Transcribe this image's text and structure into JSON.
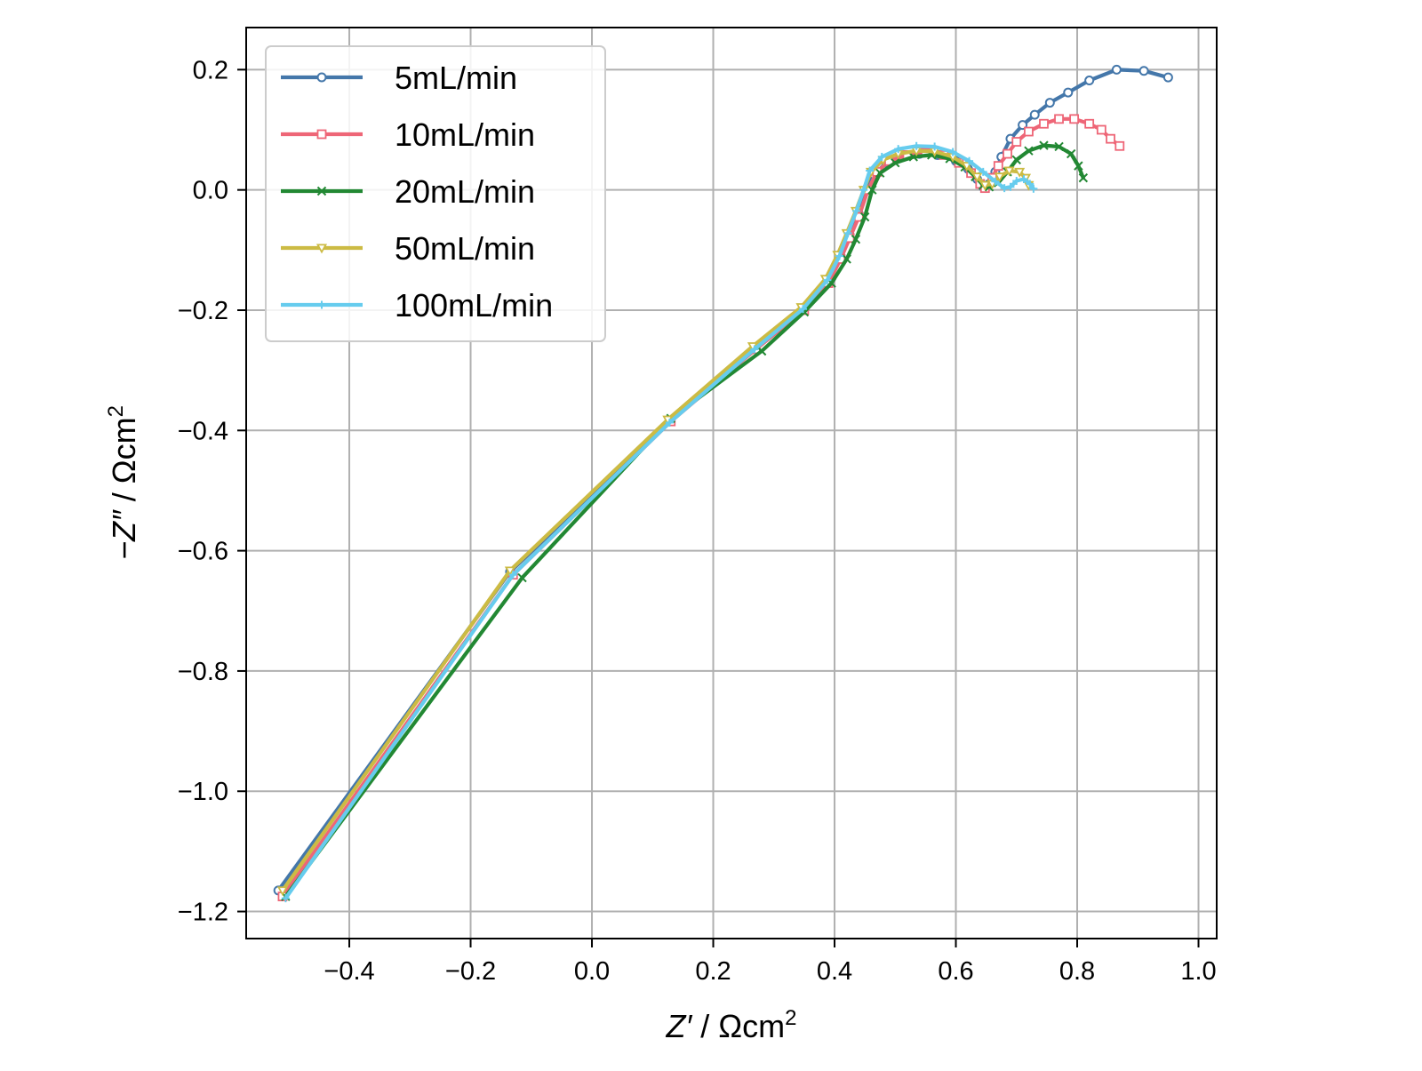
{
  "chart_data": {
    "type": "line",
    "xlabel_var": "Z′",
    "xlabel_unit": " / Ωcm",
    "ylabel_var": "−Z″",
    "ylabel_unit": " / Ωcm",
    "unit_exponent": "2",
    "xlim": [
      -0.57,
      1.03
    ],
    "ylim": [
      -1.245,
      0.27
    ],
    "xticks": [
      -0.4,
      -0.2,
      0.0,
      0.2,
      0.4,
      0.6,
      0.8,
      1.0
    ],
    "xtick_labels": [
      "−0.4",
      "−0.2",
      "0.0",
      "0.2",
      "0.4",
      "0.6",
      "0.8",
      "1.0"
    ],
    "yticks": [
      0.2,
      0.0,
      -0.2,
      -0.4,
      -0.6,
      -0.8,
      -1.0,
      -1.2
    ],
    "ytick_labels": [
      "0.2",
      "0.0",
      "−0.2",
      "−0.4",
      "−0.6",
      "−0.8",
      "−1.0",
      "−1.2"
    ],
    "grid": true,
    "legend_position": "top-left",
    "series": [
      {
        "name": "5mL/min",
        "color": "#4477aa",
        "marker": "circle",
        "points": [
          [
            -0.517,
            -1.165
          ],
          [
            -0.135,
            -0.635
          ],
          [
            0.128,
            -0.385
          ],
          [
            0.27,
            -0.263
          ],
          [
            0.35,
            -0.198
          ],
          [
            0.39,
            -0.152
          ],
          [
            0.41,
            -0.11
          ],
          [
            0.425,
            -0.075
          ],
          [
            0.44,
            -0.04
          ],
          [
            0.452,
            0.0
          ],
          [
            0.465,
            0.025
          ],
          [
            0.485,
            0.045
          ],
          [
            0.51,
            0.055
          ],
          [
            0.54,
            0.06
          ],
          [
            0.57,
            0.058
          ],
          [
            0.6,
            0.048
          ],
          [
            0.62,
            0.035
          ],
          [
            0.635,
            0.018
          ],
          [
            0.645,
            0.005
          ],
          [
            0.655,
            0.01
          ],
          [
            0.665,
            0.03
          ],
          [
            0.675,
            0.055
          ],
          [
            0.69,
            0.085
          ],
          [
            0.71,
            0.108
          ],
          [
            0.73,
            0.125
          ],
          [
            0.755,
            0.145
          ],
          [
            0.785,
            0.162
          ],
          [
            0.82,
            0.182
          ],
          [
            0.865,
            0.2
          ],
          [
            0.91,
            0.198
          ],
          [
            0.95,
            0.187
          ]
        ]
      },
      {
        "name": "10mL/min",
        "color": "#ee6677",
        "marker": "square",
        "points": [
          [
            -0.51,
            -1.175
          ],
          [
            -0.13,
            -0.64
          ],
          [
            0.13,
            -0.385
          ],
          [
            0.27,
            -0.265
          ],
          [
            0.35,
            -0.2
          ],
          [
            0.39,
            -0.155
          ],
          [
            0.41,
            -0.115
          ],
          [
            0.425,
            -0.08
          ],
          [
            0.44,
            -0.045
          ],
          [
            0.455,
            0.0
          ],
          [
            0.47,
            0.03
          ],
          [
            0.49,
            0.048
          ],
          [
            0.52,
            0.058
          ],
          [
            0.55,
            0.062
          ],
          [
            0.58,
            0.058
          ],
          [
            0.605,
            0.045
          ],
          [
            0.625,
            0.028
          ],
          [
            0.64,
            0.01
          ],
          [
            0.648,
            0.003
          ],
          [
            0.66,
            0.02
          ],
          [
            0.67,
            0.04
          ],
          [
            0.685,
            0.06
          ],
          [
            0.7,
            0.08
          ],
          [
            0.72,
            0.097
          ],
          [
            0.745,
            0.11
          ],
          [
            0.77,
            0.118
          ],
          [
            0.795,
            0.118
          ],
          [
            0.82,
            0.11
          ],
          [
            0.84,
            0.1
          ],
          [
            0.855,
            0.085
          ],
          [
            0.87,
            0.073
          ]
        ]
      },
      {
        "name": "20mL/min",
        "color": "#228833",
        "marker": "x",
        "points": [
          [
            -0.505,
            -1.175
          ],
          [
            -0.115,
            -0.645
          ],
          [
            0.13,
            -0.38
          ],
          [
            0.28,
            -0.268
          ],
          [
            0.35,
            -0.203
          ],
          [
            0.395,
            -0.155
          ],
          [
            0.42,
            -0.115
          ],
          [
            0.435,
            -0.082
          ],
          [
            0.45,
            -0.045
          ],
          [
            0.462,
            0.0
          ],
          [
            0.475,
            0.028
          ],
          [
            0.5,
            0.045
          ],
          [
            0.53,
            0.055
          ],
          [
            0.56,
            0.058
          ],
          [
            0.59,
            0.052
          ],
          [
            0.615,
            0.038
          ],
          [
            0.632,
            0.022
          ],
          [
            0.645,
            0.008
          ],
          [
            0.655,
            0.005
          ],
          [
            0.67,
            0.012
          ],
          [
            0.685,
            0.03
          ],
          [
            0.7,
            0.05
          ],
          [
            0.72,
            0.065
          ],
          [
            0.745,
            0.074
          ],
          [
            0.77,
            0.072
          ],
          [
            0.79,
            0.06
          ],
          [
            0.802,
            0.04
          ],
          [
            0.81,
            0.02
          ]
        ]
      },
      {
        "name": "50mL/min",
        "color": "#ccbb44",
        "marker": "triangle-down",
        "points": [
          [
            -0.51,
            -1.165
          ],
          [
            -0.135,
            -0.633
          ],
          [
            0.125,
            -0.382
          ],
          [
            0.265,
            -0.26
          ],
          [
            0.345,
            -0.195
          ],
          [
            0.385,
            -0.148
          ],
          [
            0.405,
            -0.108
          ],
          [
            0.42,
            -0.072
          ],
          [
            0.435,
            -0.035
          ],
          [
            0.448,
            0.0
          ],
          [
            0.46,
            0.03
          ],
          [
            0.48,
            0.05
          ],
          [
            0.505,
            0.06
          ],
          [
            0.535,
            0.065
          ],
          [
            0.565,
            0.064
          ],
          [
            0.595,
            0.055
          ],
          [
            0.618,
            0.04
          ],
          [
            0.635,
            0.022
          ],
          [
            0.648,
            0.008
          ],
          [
            0.66,
            0.01
          ],
          [
            0.672,
            0.022
          ],
          [
            0.688,
            0.032
          ],
          [
            0.705,
            0.03
          ],
          [
            0.715,
            0.02
          ],
          [
            0.72,
            0.008
          ]
        ]
      },
      {
        "name": "100mL/min",
        "color": "#66ccee",
        "marker": "plus",
        "points": [
          [
            -0.505,
            -1.178
          ],
          [
            -0.13,
            -0.64
          ],
          [
            0.128,
            -0.387
          ],
          [
            0.268,
            -0.265
          ],
          [
            0.348,
            -0.198
          ],
          [
            0.388,
            -0.15
          ],
          [
            0.408,
            -0.11
          ],
          [
            0.422,
            -0.072
          ],
          [
            0.436,
            -0.035
          ],
          [
            0.448,
            0.0
          ],
          [
            0.458,
            0.032
          ],
          [
            0.478,
            0.055
          ],
          [
            0.505,
            0.068
          ],
          [
            0.535,
            0.073
          ],
          [
            0.565,
            0.072
          ],
          [
            0.595,
            0.063
          ],
          [
            0.622,
            0.048
          ],
          [
            0.645,
            0.03
          ],
          [
            0.665,
            0.014
          ],
          [
            0.68,
            0.003
          ],
          [
            0.69,
            0.005
          ],
          [
            0.7,
            0.015
          ],
          [
            0.712,
            0.018
          ],
          [
            0.722,
            0.01
          ],
          [
            0.728,
            0.002
          ]
        ]
      }
    ]
  }
}
